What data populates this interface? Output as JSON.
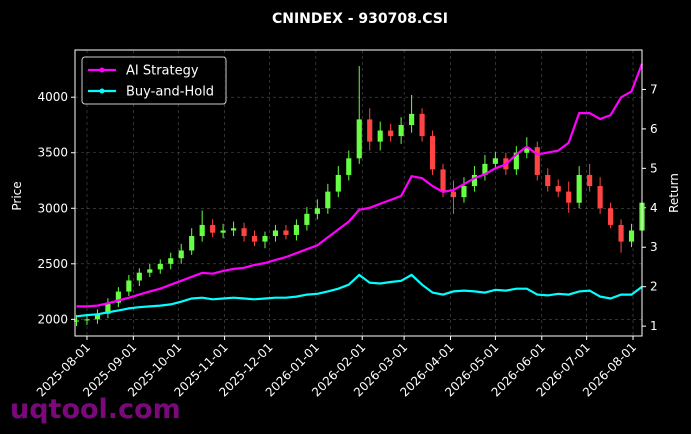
{
  "chart_data": {
    "type": "candlestick",
    "title": "CNINDEX - 930708.CSI",
    "ylabel": "Price",
    "y2label": "Return",
    "watermark": "uqtool.com",
    "x": [
      "2025-07-25",
      "2025-08-01",
      "2025-08-08",
      "2025-08-15",
      "2025-08-22",
      "2025-08-29",
      "2025-09-05",
      "2025-09-12",
      "2025-09-19",
      "2025-09-26",
      "2025-10-03",
      "2025-10-10",
      "2025-10-17",
      "2025-10-24",
      "2025-10-31",
      "2025-11-07",
      "2025-11-14",
      "2025-11-21",
      "2025-11-28",
      "2025-12-05",
      "2025-12-12",
      "2025-12-19",
      "2025-12-26",
      "2026-01-02",
      "2026-01-09",
      "2026-01-16",
      "2026-01-23",
      "2026-01-30",
      "2026-02-06",
      "2026-02-13",
      "2026-02-20",
      "2026-02-27",
      "2026-03-06",
      "2026-03-13",
      "2026-03-20",
      "2026-03-27",
      "2026-04-03",
      "2026-04-10",
      "2026-04-17",
      "2026-04-24",
      "2026-05-01",
      "2026-05-08",
      "2026-05-15",
      "2026-05-22",
      "2026-05-29",
      "2026-06-05",
      "2026-06-12",
      "2026-06-19",
      "2026-06-26",
      "2026-07-03",
      "2026-07-10",
      "2026-07-17",
      "2026-07-24",
      "2026-07-31",
      "2026-08-07"
    ],
    "open": [
      1980,
      1990,
      2000,
      2050,
      2150,
      2250,
      2350,
      2420,
      2450,
      2500,
      2550,
      2620,
      2750,
      2850,
      2780,
      2800,
      2820,
      2750,
      2700,
      2750,
      2800,
      2760,
      2850,
      2950,
      3000,
      3150,
      3300,
      3450,
      3800,
      3600,
      3700,
      3650,
      3750,
      3850,
      3650,
      3350,
      3150,
      3100,
      3200,
      3300,
      3400,
      3450,
      3350,
      3500,
      3550,
      3300,
      3200,
      3150,
      3050,
      3300,
      3200,
      3000,
      2850,
      2700,
      2800
    ],
    "high": [
      2040,
      2050,
      2090,
      2190,
      2290,
      2400,
      2460,
      2500,
      2540,
      2600,
      2680,
      2820,
      2980,
      2900,
      2860,
      2880,
      2870,
      2800,
      2790,
      2850,
      2850,
      2900,
      3010,
      3080,
      3220,
      3380,
      3520,
      4280,
      3900,
      3780,
      3760,
      3820,
      4020,
      3900,
      3700,
      3400,
      3250,
      3280,
      3380,
      3480,
      3510,
      3500,
      3560,
      3640,
      3600,
      3360,
      3260,
      3240,
      3380,
      3400,
      3280,
      3050,
      2900,
      2860,
      3120
    ],
    "low": [
      1940,
      1950,
      1960,
      2010,
      2110,
      2210,
      2300,
      2380,
      2410,
      2450,
      2500,
      2580,
      2700,
      2740,
      2730,
      2750,
      2700,
      2660,
      2640,
      2700,
      2720,
      2710,
      2800,
      2900,
      2950,
      3100,
      3250,
      3400,
      3520,
      3520,
      3600,
      3580,
      3680,
      3600,
      3300,
      3100,
      2950,
      3050,
      3150,
      3250,
      3350,
      3300,
      3300,
      3450,
      3250,
      3150,
      3100,
      2960,
      3000,
      3150,
      2950,
      2820,
      2600,
      2650,
      2750
    ],
    "close": [
      1990,
      2000,
      2050,
      2150,
      2250,
      2350,
      2420,
      2450,
      2500,
      2550,
      2620,
      2750,
      2850,
      2780,
      2800,
      2820,
      2750,
      2700,
      2750,
      2800,
      2760,
      2850,
      2950,
      3000,
      3150,
      3300,
      3450,
      3800,
      3600,
      3700,
      3650,
      3750,
      3850,
      3650,
      3350,
      3150,
      3100,
      3200,
      3300,
      3400,
      3450,
      3350,
      3500,
      3550,
      3300,
      3200,
      3150,
      3050,
      3300,
      3200,
      3000,
      2850,
      2700,
      2800,
      3050
    ],
    "up_color": "#66ff44",
    "down_color": "#ff4444",
    "series": [
      {
        "name": "AI Strategy",
        "color": "#ff00ff",
        "axis": "y2",
        "values": [
          1.5,
          1.5,
          1.52,
          1.58,
          1.65,
          1.72,
          1.8,
          1.88,
          1.95,
          2.05,
          2.15,
          2.25,
          2.35,
          2.33,
          2.4,
          2.45,
          2.48,
          2.55,
          2.6,
          2.68,
          2.75,
          2.85,
          2.95,
          3.05,
          3.25,
          3.45,
          3.65,
          3.95,
          4.0,
          4.1,
          4.2,
          4.3,
          4.8,
          4.75,
          4.55,
          4.4,
          4.45,
          4.6,
          4.75,
          4.85,
          5.0,
          5.1,
          5.35,
          5.55,
          5.35,
          5.4,
          5.45,
          5.65,
          6.4,
          6.4,
          6.25,
          6.35,
          6.8,
          6.95,
          7.65
        ]
      },
      {
        "name": "Buy-and-Hold",
        "color": "#00ffff",
        "axis": "y2",
        "values": [
          1.25,
          1.28,
          1.3,
          1.35,
          1.4,
          1.45,
          1.48,
          1.5,
          1.52,
          1.55,
          1.62,
          1.7,
          1.72,
          1.68,
          1.7,
          1.72,
          1.7,
          1.68,
          1.7,
          1.72,
          1.72,
          1.75,
          1.8,
          1.82,
          1.88,
          1.95,
          2.05,
          2.3,
          2.1,
          2.08,
          2.12,
          2.15,
          2.3,
          2.05,
          1.85,
          1.8,
          1.88,
          1.9,
          1.88,
          1.85,
          1.92,
          1.9,
          1.95,
          1.95,
          1.8,
          1.78,
          1.82,
          1.8,
          1.88,
          1.9,
          1.75,
          1.7,
          1.8,
          1.8,
          2.0
        ]
      }
    ],
    "xlim": [
      "2025-07-24",
      "2026-08-07"
    ],
    "xticks": [
      "2025-08-01",
      "2025-09-01",
      "2025-10-01",
      "2025-11-01",
      "2025-12-01",
      "2026-01-01",
      "2026-02-01",
      "2026-03-01",
      "2026-04-01",
      "2026-05-01",
      "2026-06-01",
      "2026-07-01",
      "2026-08-01"
    ],
    "ylim": [
      1850,
      4425
    ],
    "yticks": [
      2000,
      2500,
      3000,
      3500,
      4000
    ],
    "y2lim": [
      0.75,
      8.0
    ],
    "y2ticks": [
      1,
      2,
      3,
      4,
      5,
      6,
      7
    ],
    "grid": true,
    "legend": "upper left"
  }
}
